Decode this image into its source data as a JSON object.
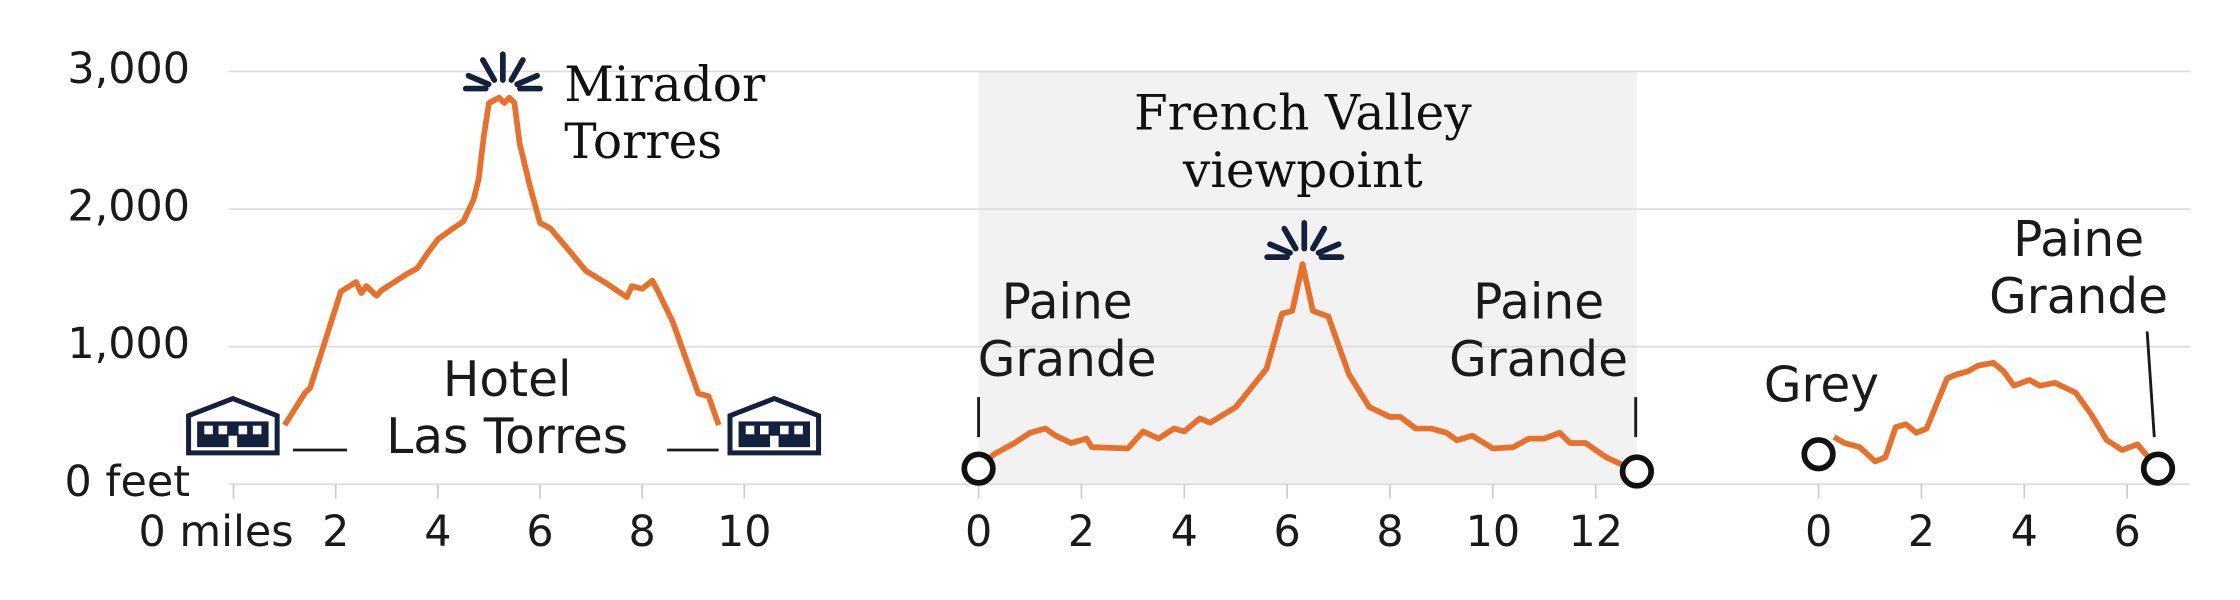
{
  "chart_data": [
    {
      "type": "line",
      "color": "#e8702a",
      "ylim": [
        0,
        3000
      ],
      "yticks": [
        {
          "value": 0,
          "label": "0 feet"
        },
        {
          "value": 1000,
          "label": "1,000"
        },
        {
          "value": 2000,
          "label": "2,000"
        },
        {
          "value": 3000,
          "label": "3,000"
        }
      ],
      "xlim": [
        0,
        11
      ],
      "xticks": [
        {
          "value": 0,
          "label": "0 miles"
        },
        2,
        4,
        6,
        8,
        10
      ],
      "annotations": [
        [
          "Mirador",
          "Torres"
        ],
        [
          "Hotel",
          "Las Torres"
        ]
      ],
      "x": [
        1.0,
        1.4,
        1.5,
        2.1,
        2.4,
        2.5,
        2.6,
        2.8,
        2.9,
        3.4,
        3.6,
        3.8,
        4.0,
        4.3,
        4.5,
        4.7,
        4.8,
        4.9,
        5.0,
        5.2,
        5.3,
        5.4,
        5.5,
        5.6,
        5.8,
        6.0,
        6.2,
        6.5,
        6.9,
        7.3,
        7.7,
        7.8,
        8.0,
        8.2,
        8.3,
        8.6,
        9.1,
        9.3,
        9.5
      ],
      "values": [
        430,
        665,
        700,
        1400,
        1470,
        1390,
        1440,
        1370,
        1410,
        1530,
        1570,
        1680,
        1780,
        1860,
        1910,
        2070,
        2220,
        2530,
        2770,
        2810,
        2770,
        2810,
        2770,
        2480,
        2170,
        1900,
        1860,
        1730,
        1550,
        1460,
        1360,
        1440,
        1420,
        1480,
        1410,
        1180,
        660,
        640,
        430
      ]
    },
    {
      "type": "line",
      "color": "#e8702a",
      "shaded": true,
      "xlim": [
        0,
        12.8
      ],
      "xticks": [
        0,
        2,
        4,
        6,
        8,
        10,
        12
      ],
      "annotations": [
        [
          "French Valley",
          "viewpoint"
        ],
        [
          "Paine",
          "Grande"
        ],
        [
          "Paine",
          "Grande"
        ]
      ],
      "x": [
        0,
        0.3,
        0.7,
        1.0,
        1.3,
        1.5,
        1.8,
        2.1,
        2.2,
        2.9,
        3.2,
        3.5,
        3.8,
        4.0,
        4.3,
        4.5,
        5.0,
        5.6,
        5.9,
        6.1,
        6.3,
        6.5,
        6.8,
        7.2,
        7.6,
        8.0,
        8.2,
        8.5,
        8.8,
        9.1,
        9.3,
        9.6,
        10.0,
        10.4,
        10.7,
        11.0,
        11.3,
        11.5,
        11.8,
        12.2,
        12.8
      ],
      "values": [
        114,
        218,
        300,
        374,
        405,
        353,
        300,
        332,
        270,
        260,
        384,
        332,
        405,
        384,
        478,
        447,
        560,
        840,
        1240,
        1260,
        1600,
        1260,
        1220,
        800,
        560,
        490,
        490,
        405,
        405,
        374,
        320,
        353,
        260,
        270,
        332,
        332,
        374,
        300,
        300,
        197,
        93
      ]
    },
    {
      "type": "line",
      "color": "#e8702a",
      "xlim": [
        0,
        6.6
      ],
      "xticks": [
        0,
        2,
        4,
        6
      ],
      "annotations": [
        [
          "Grey"
        ],
        [
          "Paine",
          "Grande"
        ]
      ],
      "x": [
        0.3,
        0.5,
        0.8,
        1.1,
        1.3,
        1.5,
        1.7,
        1.9,
        2.1,
        2.5,
        2.7,
        2.9,
        3.1,
        3.4,
        3.6,
        3.8,
        4.1,
        4.3,
        4.6,
        5.0,
        5.3,
        5.6,
        5.9,
        6.2,
        6.6
      ],
      "values": [
        343,
        300,
        270,
        166,
        197,
        415,
        436,
        374,
        405,
        770,
        800,
        820,
        862,
        883,
        820,
        716,
        758,
        716,
        737,
        665,
        509,
        322,
        249,
        290,
        114
      ]
    }
  ]
}
